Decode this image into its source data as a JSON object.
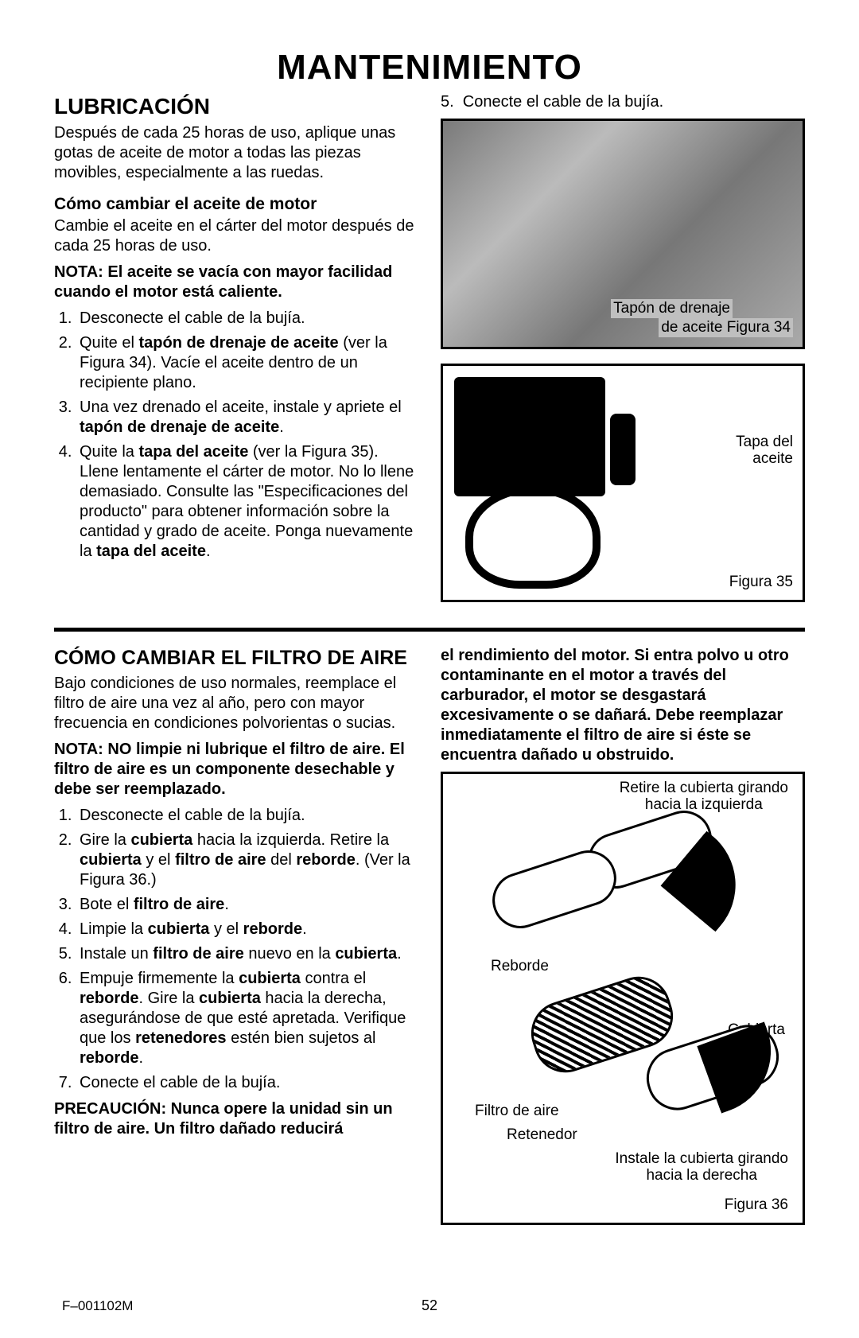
{
  "title": "MANTENIMIENTO",
  "lubricacion": {
    "heading": "LUBRICACIÓN",
    "intro": "Después de cada 25 horas de uso, aplique unas gotas de aceite de motor a todas las piezas movibles, especialmente a las ruedas.",
    "sub_heading": "Cómo cambiar el aceite de motor",
    "sub_intro": "Cambie el aceite en el cárter del motor después de cada 25 horas de uso.",
    "nota": "NOTA: El aceite se vacía con mayor facilidad cuando el motor está caliente.",
    "steps": [
      "Desconecte el cable de la bujía.",
      "Quite el <b>tapón de drenaje de aceite</b> (ver la Figura 34). Vacíe el aceite dentro de un recipiente plano.",
      "Una vez drenado el aceite, instale y apriete el <b>tapón de drenaje de aceite</b>.",
      "Quite la <b>tapa del aceite</b> (ver la Figura 35). Llene lentamente el cárter de motor. No lo llene demasiado. Consulte las \"Especificaciones del producto\" para obtener información sobre la cantidad y grado de aceite. Ponga nuevamente la <b>tapa del aceite</b>."
    ],
    "step5_right": "Conecte el cable de la bujía."
  },
  "fig34": {
    "label1": "Tapón de drenaje",
    "label2": "de aceite   Figura 34"
  },
  "fig35": {
    "label1": "Tapa del\naceite",
    "label2": "Figura 35"
  },
  "filtro": {
    "heading": "CÓMO CAMBIAR EL FILTRO DE AIRE",
    "intro": "Bajo condiciones de uso normales, reemplace el filtro de aire una vez al año, pero con mayor frecuencia en condiciones polvorientas o sucias.",
    "nota": "NOTA: NO limpie ni lubrique el filtro de aire. El filtro de aire es un componente desechable y debe ser reemplazado.",
    "steps": [
      "Desconecte el cable de la bujía.",
      "Gire la <b>cubierta</b> hacia la izquierda. Retire la <b>cubierta</b> y el <b>filtro de aire</b> del <b>reborde</b>. (Ver la Figura 36.)",
      "Bote el <b>filtro de aire</b>.",
      "Limpie la <b>cubierta</b> y el <b>reborde</b>.",
      "Instale un <b>filtro de aire</b> nuevo en la <b>cubierta</b>.",
      "Empuje firmemente la <b>cubierta</b> contra el <b>reborde</b>. Gire la <b>cubierta</b> hacia la derecha, asegurándose de que esté apretada. Verifique que los <b>retenedores</b> estén bien sujetos al <b>reborde</b>.",
      "Conecte el cable de la bujía."
    ],
    "precaucion": "PRECAUCIÓN: Nunca opere la unidad sin un filtro de aire. Un filtro dañado reducirá",
    "precaucion_cont": "el rendimiento del motor. Si entra polvo u otro contaminante en el motor a través del carburador, el motor se desgastará excesivamente o se dañará. Debe reemplazar inmediatamente el filtro de aire si éste se encuentra dañado u obstruido."
  },
  "fig36": {
    "caption1": "Retire la cubierta girando\nhacia la izquierda",
    "reborde": "Reborde",
    "cubierta": "Cubierta",
    "filtro": "Filtro de aire",
    "retenedor": "Retenedor",
    "caption2": "Instale la cubierta girando\nhacia la derecha",
    "fignum": "Figura 36"
  },
  "footer": {
    "code": "F–001102M",
    "page": "52"
  },
  "colors": {
    "text": "#000000",
    "background": "#ffffff",
    "rule": "#000000"
  },
  "typography": {
    "title_size_pt": 33,
    "section_size_pt": 21,
    "body_size_pt": 15,
    "family": "Arial"
  }
}
